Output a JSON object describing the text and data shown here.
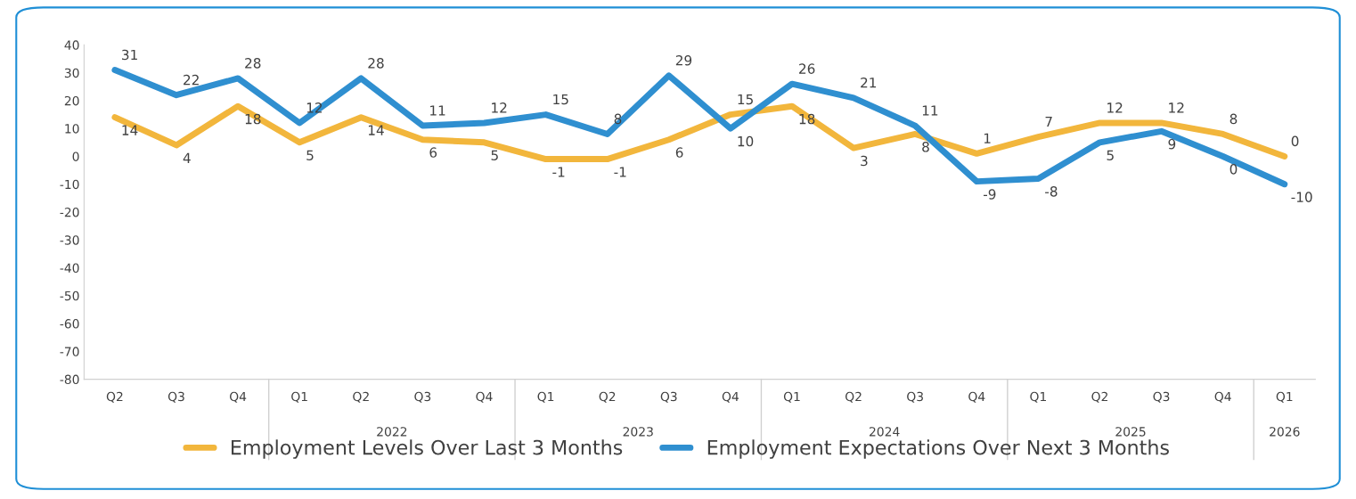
{
  "chart_data": {
    "type": "line",
    "categories": [
      "Q2",
      "Q3",
      "Q4",
      "Q1",
      "Q2",
      "Q3",
      "Q4",
      "Q1",
      "Q2",
      "Q3",
      "Q4",
      "Q1",
      "Q2",
      "Q3",
      "Q4",
      "Q1",
      "Q2",
      "Q3",
      "Q4",
      "Q1"
    ],
    "series": [
      {
        "name": "Employment Levels Over Last 3 Months",
        "color": "#f2b63c",
        "values": [
          14,
          4,
          18,
          5,
          14,
          6,
          5,
          -1,
          -1,
          6,
          15,
          18,
          3,
          8,
          1,
          7,
          12,
          12,
          8,
          0
        ]
      },
      {
        "name": "Employment Expectations Over Next 3 Months",
        "color": "#2f8fd0",
        "values": [
          31,
          22,
          28,
          12,
          28,
          11,
          12,
          15,
          8,
          29,
          10,
          26,
          21,
          11,
          -9,
          -8,
          5,
          9,
          0,
          -10
        ]
      }
    ],
    "annotations": [
      "2022",
      "2023",
      "2024",
      "2025",
      "2026"
    ],
    "ylim": [
      -80,
      40
    ],
    "yticks": [
      -80,
      -70,
      -60,
      -50,
      -40,
      -30,
      -20,
      -10,
      0,
      10,
      20,
      30,
      40
    ],
    "data_labels": true,
    "legend": "bottom",
    "grid": false,
    "marker": "none",
    "line_style": "solid"
  }
}
